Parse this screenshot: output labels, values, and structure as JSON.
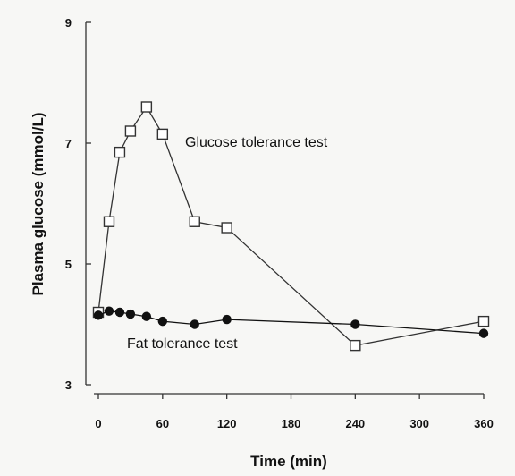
{
  "chart_data": {
    "type": "line",
    "title": "",
    "xlabel": "Time (min)",
    "ylabel": "Plasma glucose (mmol/L)",
    "xlim": [
      0,
      360
    ],
    "ylim": [
      3,
      9
    ],
    "xticks": [
      0,
      60,
      120,
      180,
      240,
      300,
      360
    ],
    "yticks": [
      3,
      5,
      7,
      9
    ],
    "grid": false,
    "legend": "none",
    "series": [
      {
        "name": "Glucose tolerance test",
        "marker": "open-square",
        "color": "#333333",
        "x": [
          0,
          10,
          20,
          30,
          45,
          60,
          90,
          120,
          240,
          360
        ],
        "y": [
          4.2,
          5.7,
          6.85,
          7.2,
          7.6,
          7.15,
          5.7,
          5.6,
          3.65,
          4.05
        ]
      },
      {
        "name": "Fat tolerance test",
        "marker": "filled-circle",
        "color": "#111111",
        "x": [
          0,
          10,
          20,
          30,
          45,
          60,
          90,
          120,
          240,
          360
        ],
        "y": [
          4.15,
          4.22,
          4.2,
          4.17,
          4.13,
          4.05,
          4.0,
          4.08,
          4.0,
          3.85
        ]
      }
    ]
  }
}
